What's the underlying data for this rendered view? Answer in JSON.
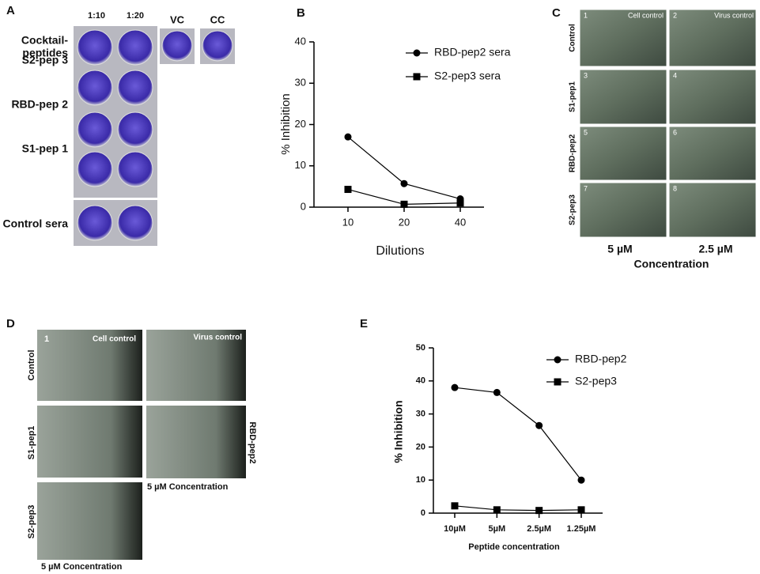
{
  "panels": {
    "A": {
      "label": "A",
      "columns": [
        "1:10",
        "1:20",
        "VC",
        "CC"
      ],
      "rows": [
        [
          "Cocktail-",
          "peptides"
        ],
        [
          "S2-pep 3"
        ],
        [
          "RBD-pep 2"
        ],
        [
          "S1-pep 1"
        ],
        [
          "Control sera"
        ]
      ]
    },
    "C": {
      "label": "C",
      "rows": [
        "Control",
        "S1-pep1",
        "RBD-pep2",
        "S2-pep3"
      ],
      "numbers": [
        "1",
        "2",
        "3",
        "4",
        "5",
        "6",
        "7",
        "8"
      ],
      "captions": [
        "Cell control",
        "Virus control"
      ],
      "columns": [
        "5 µM",
        "2.5 µM"
      ],
      "xlabel": "Concentration"
    },
    "D": {
      "label": "D",
      "number": "1",
      "captions": [
        "Cell control",
        "Virus control"
      ],
      "rows": [
        "Control",
        "S1-pep1",
        "S2-pep3"
      ],
      "side": "RBD-pep2",
      "footers": [
        "5 µM Concentration",
        "5 µM Concentration"
      ]
    }
  },
  "chart_data": [
    {
      "type": "line",
      "title": "B",
      "xlabel": "Dilutions",
      "ylabel": "% Inhibition",
      "categories": [
        "10",
        "20",
        "40"
      ],
      "ylim": [
        0,
        40
      ],
      "yticks": [
        0,
        10,
        20,
        30,
        40
      ],
      "grid": false,
      "series": [
        {
          "name": "RBD-pep2 sera",
          "color": "#000000",
          "marker": "circle",
          "values": [
            17,
            5.7,
            2
          ]
        },
        {
          "name": "S2-pep3 sera",
          "color": "#000000",
          "marker": "square",
          "values": [
            4.3,
            0.7,
            1
          ]
        }
      ]
    },
    {
      "type": "line",
      "title": "E",
      "xlabel": "Peptide concentration",
      "ylabel": "% Inhibition",
      "categories": [
        "10µM",
        "5µM",
        "2.5µM",
        "1.25µM"
      ],
      "ylim": [
        0,
        50
      ],
      "yticks": [
        0,
        10,
        20,
        30,
        40,
        50
      ],
      "grid": false,
      "series": [
        {
          "name": "RBD-pep2",
          "color": "#000000",
          "marker": "circle",
          "values": [
            38,
            36.5,
            26.5,
            10
          ]
        },
        {
          "name": "S2-pep3",
          "color": "#000000",
          "marker": "square",
          "values": [
            2.2,
            1,
            0.8,
            1
          ]
        }
      ]
    }
  ]
}
